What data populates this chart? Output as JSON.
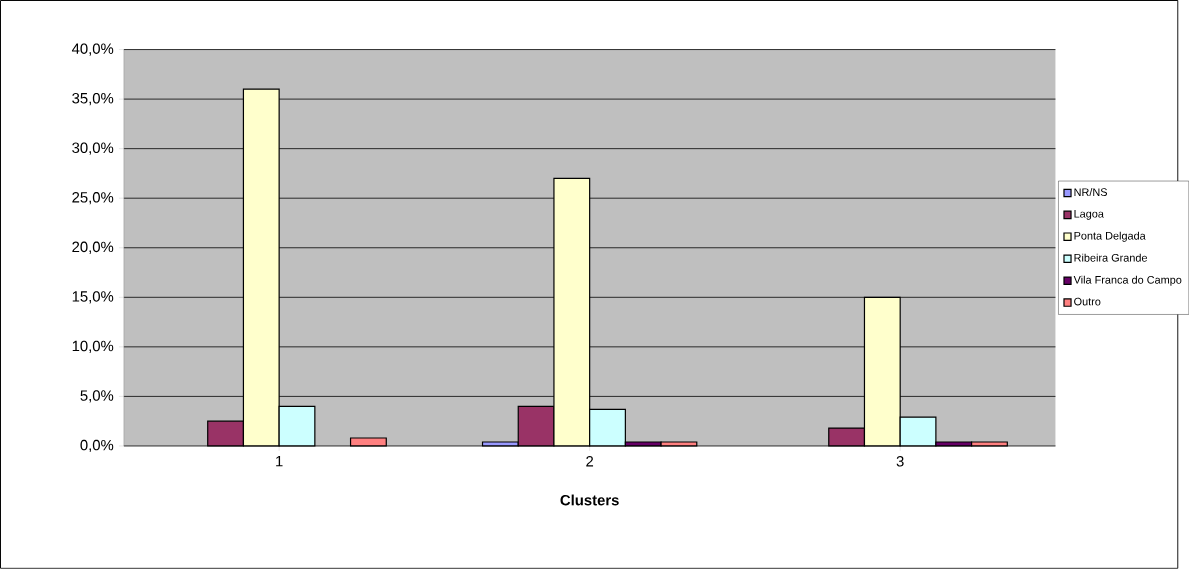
{
  "chart_data": {
    "type": "bar",
    "xlabel": "Clusters",
    "categories": [
      "1",
      "2",
      "3"
    ],
    "series": [
      {
        "name": "NR/NS",
        "color": "#9999ff",
        "values": [
          null,
          0.4,
          null
        ]
      },
      {
        "name": "Lagoa",
        "color": "#993366",
        "values": [
          2.5,
          4.0,
          1.8
        ]
      },
      {
        "name": "Ponta Delgada",
        "color": "#ffffcc",
        "values": [
          36.0,
          27.0,
          15.0
        ]
      },
      {
        "name": "Ribeira Grande",
        "color": "#ccffff",
        "values": [
          4.0,
          3.7,
          2.9
        ]
      },
      {
        "name": "Vila Franca do Campo",
        "color": "#660066",
        "values": [
          null,
          0.4,
          0.4
        ]
      },
      {
        "name": "Outro",
        "color": "#ff8080",
        "values": [
          0.8,
          0.4,
          0.4
        ]
      }
    ],
    "ylim": [
      0,
      40
    ],
    "yticks": [
      {
        "value": 0,
        "label": "0,0%"
      },
      {
        "value": 5,
        "label": "5,0%"
      },
      {
        "value": 10,
        "label": "10,0%"
      },
      {
        "value": 15,
        "label": "15,0%"
      },
      {
        "value": 20,
        "label": "20,0%"
      },
      {
        "value": 25,
        "label": "25,0%"
      },
      {
        "value": 30,
        "label": "30,0%"
      },
      {
        "value": 35,
        "label": "35,0%"
      },
      {
        "value": 40,
        "label": "40,0%"
      }
    ],
    "grid": "y",
    "legend": "right"
  }
}
